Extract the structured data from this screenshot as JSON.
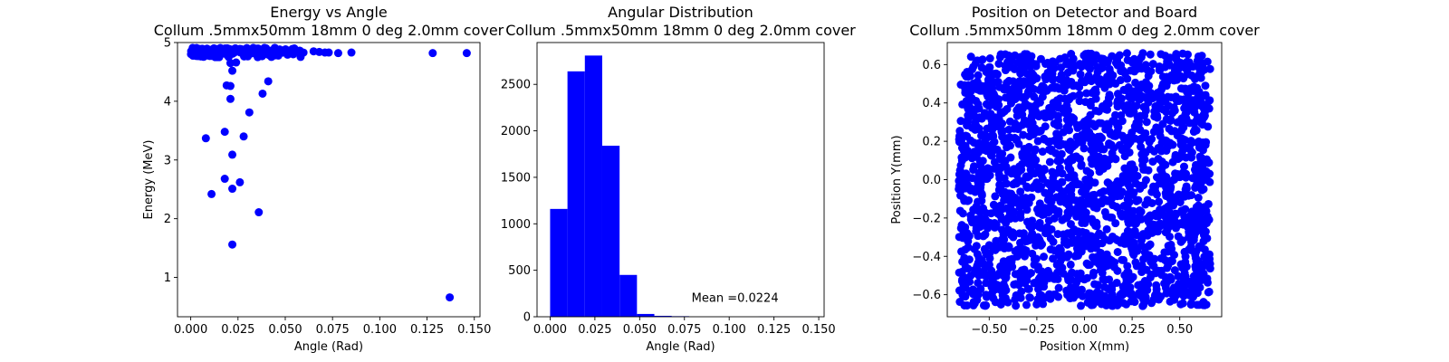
{
  "chart_data": [
    {
      "type": "scatter",
      "title": "Energy vs Angle",
      "subtitle": "Collum .5mmx50mm 18mm 0 deg 2.0mm cover",
      "xlabel": "Angle (Rad)",
      "ylabel": "Energy (MeV)",
      "xlim": [
        -0.007,
        0.153
      ],
      "ylim": [
        0.33,
        5.0
      ],
      "xticks": [
        0.0,
        0.025,
        0.05,
        0.075,
        0.1,
        0.125,
        0.15
      ],
      "xtick_labels": [
        "0.000",
        "0.025",
        "0.050",
        "0.075",
        "0.100",
        "0.125",
        "0.150"
      ],
      "yticks": [
        1,
        2,
        3,
        4,
        5
      ],
      "ytick_labels": [
        "1",
        "2",
        "3",
        "4",
        "5"
      ],
      "color": "#0000ff",
      "band": {
        "x_range": [
          0.0,
          0.06
        ],
        "y": 4.83,
        "y_spread": 0.08,
        "count": 160
      },
      "points": [
        [
          0.065,
          4.85
        ],
        [
          0.068,
          4.84
        ],
        [
          0.071,
          4.83
        ],
        [
          0.073,
          4.83
        ],
        [
          0.078,
          4.82
        ],
        [
          0.085,
          4.83
        ],
        [
          0.128,
          4.82
        ],
        [
          0.146,
          4.82
        ],
        [
          0.021,
          4.65
        ],
        [
          0.024,
          4.66
        ],
        [
          0.022,
          4.52
        ],
        [
          0.019,
          4.27
        ],
        [
          0.021,
          4.26
        ],
        [
          0.041,
          4.34
        ],
        [
          0.038,
          4.13
        ],
        [
          0.021,
          4.04
        ],
        [
          0.031,
          3.81
        ],
        [
          0.018,
          3.48
        ],
        [
          0.028,
          3.4
        ],
        [
          0.008,
          3.37
        ],
        [
          0.022,
          3.09
        ],
        [
          0.018,
          2.68
        ],
        [
          0.026,
          2.62
        ],
        [
          0.022,
          2.51
        ],
        [
          0.011,
          2.42
        ],
        [
          0.036,
          2.11
        ],
        [
          0.022,
          1.56
        ],
        [
          0.137,
          0.66
        ]
      ]
    },
    {
      "type": "bar",
      "title": "Angular Distribution",
      "subtitle": "Collum .5mmx50mm 18mm 0 deg 2.0mm cover",
      "xlabel": "Angle (Rad)",
      "ylabel": "",
      "xlim": [
        -0.0073,
        0.153
      ],
      "ylim": [
        0,
        2950
      ],
      "xticks": [
        0.0,
        0.025,
        0.05,
        0.075,
        0.1,
        0.125,
        0.15
      ],
      "xtick_labels": [
        "0.000",
        "0.025",
        "0.050",
        "0.075",
        "0.100",
        "0.125",
        "0.150"
      ],
      "yticks": [
        0,
        500,
        1000,
        1500,
        2000,
        2500
      ],
      "ytick_labels": [
        "0",
        "500",
        "1000",
        "1500",
        "2000",
        "2500"
      ],
      "color": "#0000ff",
      "bin_edges": [
        0.0,
        0.0097,
        0.0194,
        0.0291,
        0.0388,
        0.0485,
        0.0582,
        0.0679,
        0.0776,
        0.0873,
        0.097,
        0.1067,
        0.1164,
        0.1261,
        0.1358,
        0.1455
      ],
      "values": [
        1160,
        2640,
        2810,
        1840,
        450,
        30,
        10,
        6,
        0,
        0,
        0,
        0,
        2,
        1,
        1
      ],
      "annotation": {
        "text": "Mean =0.0224",
        "x": 0.079,
        "y": 130
      }
    },
    {
      "type": "scatter",
      "title": "Position on Detector and Board",
      "subtitle": "Collum .5mmx50mm 18mm 0 deg 2.0mm cover",
      "xlabel": "Position X(mm)",
      "ylabel": "Position Y(mm)",
      "xlim": [
        -0.72,
        0.72
      ],
      "ylim": [
        -0.715,
        0.715
      ],
      "xticks": [
        -0.5,
        -0.25,
        0.0,
        0.25,
        0.5
      ],
      "xtick_labels": [
        "−0.50",
        "−0.25",
        "0.00",
        "0.25",
        "0.50"
      ],
      "yticks": [
        -0.6,
        -0.4,
        -0.2,
        0.0,
        0.2,
        0.4,
        0.6
      ],
      "ytick_labels": [
        "−0.6",
        "−0.4",
        "−0.2",
        "0.0",
        "0.2",
        "0.4",
        "0.6"
      ],
      "color": "#0000ff",
      "uniform_square": {
        "x_range": [
          -0.66,
          0.66
        ],
        "y_range": [
          -0.66,
          0.66
        ],
        "count": 2200
      }
    }
  ]
}
